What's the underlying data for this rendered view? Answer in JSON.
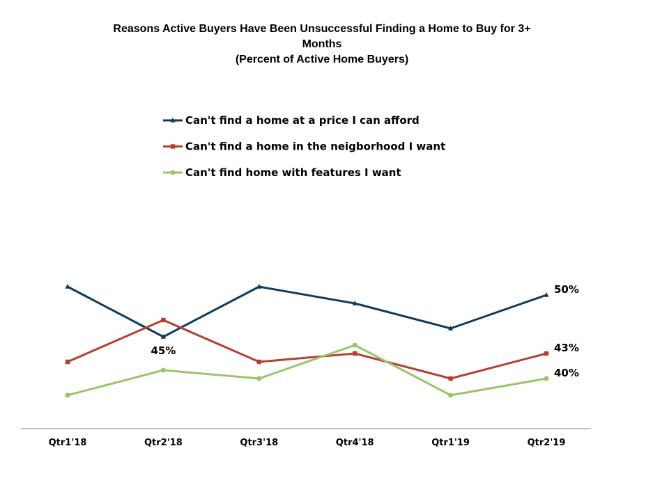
{
  "chart_data": {
    "type": "line",
    "title": "Reasons Active Buyers Have Been Unsuccessful Finding a Home to Buy for 3+ Months",
    "subtitle": "(Percent of Active Home Buyers)",
    "title_lines": [
      "Reasons Active Buyers Have Been Unsuccessful Finding a Home to Buy for 3+",
      "Months",
      "(Percent of Active Home Buyers)"
    ],
    "xlabel": "",
    "ylabel": "",
    "categories": [
      "Qtr1'18",
      "Qtr2'18",
      "Qtr3'18",
      "Qtr4'18",
      "Qtr1'19",
      "Qtr2'19"
    ],
    "ylim": [
      33,
      55
    ],
    "grid": false,
    "legend_position": "top",
    "series": [
      {
        "name": "Can't find a home at a price I can afford",
        "color": "#0e3b5e",
        "marker": "triangle",
        "values": [
          51,
          45,
          51,
          49,
          46,
          50
        ]
      },
      {
        "name": "Can't find a home in the neigborhood I want",
        "color": "#b5402f",
        "marker": "square",
        "values": [
          42,
          47,
          42,
          43,
          40,
          43
        ]
      },
      {
        "name": "Can't find home with features I want",
        "color": "#9bc46a",
        "marker": "circle",
        "values": [
          38,
          41,
          40,
          44,
          38,
          40
        ]
      }
    ],
    "data_labels": [
      {
        "series": 0,
        "index": 1,
        "text": "45%",
        "position": "below"
      },
      {
        "series": 0,
        "index": 5,
        "text": "50%",
        "position": "right"
      },
      {
        "series": 1,
        "index": 5,
        "text": "43%",
        "position": "right"
      },
      {
        "series": 2,
        "index": 5,
        "text": "40%",
        "position": "right"
      }
    ]
  }
}
